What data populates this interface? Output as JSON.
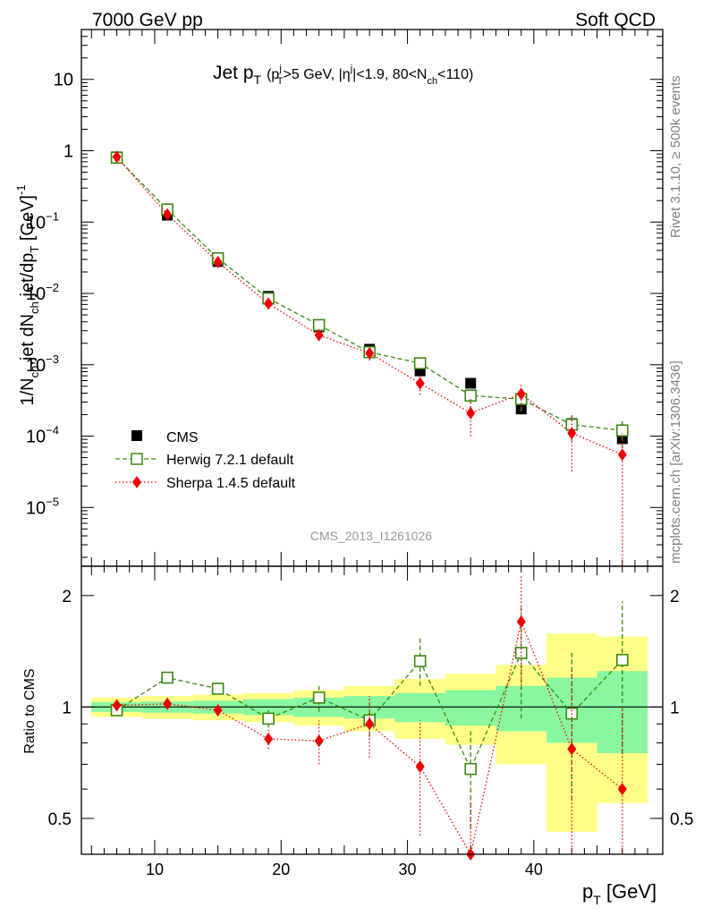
{
  "header": {
    "energy_label": "7000 GeV pp",
    "process_label": "Soft QCD"
  },
  "side_labels": {
    "rivet": "Rivet 3.1.10, ≥ 500k events",
    "source": "mcplots.cern.ch [arXiv:1306.3436]"
  },
  "watermark": "CMS_2013_I1261026",
  "colors": {
    "cms": "#000000",
    "herwig": "#3a8a12",
    "sherpa": "#ee0000",
    "band_yellow": "#ffff88",
    "band_green": "#88f7a0"
  },
  "chart_data": [
    {
      "type": "scatter",
      "panel": "main",
      "title": "Jet p_T (p_T^j>5 GeV, |η^j|<1.9, 80<N_ch<110)",
      "title_parts": {
        "main": "Jet p",
        "main_sub": "T",
        "cond_open": "(p",
        "cond_sup": "j",
        "cond_sub": "T",
        "cond_a": ">5 GeV, |η",
        "cond_sup2": "j",
        "cond_b": "|<1.9, 80<N",
        "cond_sub2": "ch",
        "cond_c": "<110)"
      },
      "ylabel": "1/N_ch,jet dN_ch,jet/dp_T [GeV]^-1",
      "ylabel_parts": {
        "a": "1/N",
        "a_sub": "ch",
        "b": ",jet dN",
        "b_sub": "ch",
        "c": ",jet/dp",
        "c_sub": "T",
        "d": " [GeV]",
        "d_sup": "-1"
      },
      "yscale": "log",
      "ylim": [
        1.5e-06,
        50
      ],
      "xlim": [
        4.2,
        50.2
      ],
      "y_ticks": [
        {
          "value": 1e-05,
          "base": "10",
          "exp": "−5"
        },
        {
          "value": 0.0001,
          "base": "10",
          "exp": "−4"
        },
        {
          "value": 0.001,
          "base": "10",
          "exp": "−3"
        },
        {
          "value": 0.01,
          "base": "10",
          "exp": "−2"
        },
        {
          "value": 0.1,
          "base": "10",
          "exp": "−1"
        },
        {
          "value": 1,
          "base": "1",
          "exp": ""
        },
        {
          "value": 10,
          "base": "10",
          "exp": ""
        }
      ],
      "legend": {
        "position": "bottom-left",
        "entries": [
          "CMS",
          "Herwig 7.2.1 default",
          "Sherpa 1.4.5 default"
        ]
      },
      "x": [
        7,
        11,
        15,
        19,
        23,
        27,
        31,
        35,
        39,
        43,
        47
      ],
      "series": [
        {
          "name": "CMS",
          "values": [
            0.82,
            0.125,
            0.028,
            0.0091,
            0.0034,
            0.00165,
            0.00082,
            0.00055,
            0.00024,
            0.00015,
            9.2e-05
          ]
        },
        {
          "name": "Herwig 7.2.1 default",
          "values": [
            0.8,
            0.15,
            0.031,
            0.0085,
            0.0036,
            0.0015,
            0.00105,
            0.00037,
            0.00033,
            0.000145,
            0.00012
          ],
          "err_low": [
            0.77,
            0.145,
            0.0298,
            0.0081,
            0.0033,
            0.00135,
            0.00095,
            0.00029,
            0.00022,
            8.5e-05,
            7e-05
          ],
          "err_high": [
            0.83,
            0.155,
            0.0322,
            0.0089,
            0.0039,
            0.00165,
            0.00117,
            0.00048,
            0.00045,
            0.00021,
            0.000175
          ]
        },
        {
          "name": "Sherpa 1.4.5 default",
          "values": [
            0.82,
            0.128,
            0.0275,
            0.0072,
            0.0026,
            0.00145,
            0.00055,
            0.00021,
            0.00039,
            0.00011,
            5.5e-05
          ],
          "err_low": [
            0.8,
            0.125,
            0.0268,
            0.0068,
            0.0022,
            0.00115,
            0.00038,
            0.0001,
            0.00025,
            3.2e-05,
            1.5e-06
          ],
          "err_high": [
            0.84,
            0.131,
            0.0282,
            0.0076,
            0.003,
            0.00175,
            0.00072,
            0.00033,
            0.00053,
            0.00019,
            0.00011
          ]
        }
      ]
    },
    {
      "type": "scatter",
      "panel": "ratio",
      "ylabel": "Ratio to CMS",
      "xlabel": "p_T [GeV]",
      "xlabel_parts": {
        "a": "p",
        "a_sub": "T",
        "b": " [GeV]"
      },
      "ylim": [
        0.4,
        2.4
      ],
      "xlim": [
        4.2,
        50.2
      ],
      "x_ticks": [
        10,
        20,
        30,
        40
      ],
      "y_ticks": [
        0.5,
        1,
        2
      ],
      "reference_line": 1,
      "bands": {
        "edges": [
          5,
          9,
          13,
          17,
          21,
          25,
          29,
          33,
          37,
          41,
          45,
          49
        ],
        "yellow_low": [
          0.94,
          0.93,
          0.92,
          0.91,
          0.89,
          0.86,
          0.82,
          0.79,
          0.7,
          0.46,
          0.55
        ],
        "yellow_high": [
          1.06,
          1.07,
          1.08,
          1.09,
          1.11,
          1.14,
          1.19,
          1.23,
          1.3,
          1.58,
          1.55
        ],
        "green_low": [
          0.97,
          0.965,
          0.96,
          0.95,
          0.94,
          0.93,
          0.91,
          0.89,
          0.86,
          0.8,
          0.75
        ],
        "green_high": [
          1.03,
          1.035,
          1.04,
          1.05,
          1.06,
          1.07,
          1.09,
          1.11,
          1.14,
          1.2,
          1.25
        ]
      },
      "x": [
        7,
        11,
        15,
        19,
        23,
        27,
        31,
        35,
        39,
        43,
        47
      ],
      "series": [
        {
          "name": "Herwig 7.2.1 default",
          "values": [
            0.98,
            1.2,
            1.12,
            0.93,
            1.06,
            0.92,
            1.33,
            0.68,
            1.4,
            0.96,
            1.34
          ],
          "err_low": [
            0.96,
            1.17,
            1.09,
            0.88,
            0.97,
            0.83,
            1.14,
            0.47,
            0.93,
            0.56,
            0.75
          ],
          "err_high": [
            1.0,
            1.23,
            1.15,
            0.98,
            1.16,
            1.02,
            1.53,
            0.86,
            1.87,
            1.4,
            1.93
          ]
        },
        {
          "name": "Sherpa 1.4.5 default",
          "values": [
            1.01,
            1.02,
            0.98,
            0.82,
            0.81,
            0.9,
            0.69,
            0.38,
            1.7,
            0.77,
            0.6
          ],
          "err_low": [
            0.99,
            1.0,
            0.95,
            0.77,
            0.7,
            0.73,
            0.45,
            0.2,
            1.12,
            0.28,
            0.2
          ],
          "err_high": [
            1.03,
            1.04,
            1.01,
            0.87,
            0.92,
            1.07,
            0.92,
            0.56,
            2.28,
            1.26,
            1.0
          ]
        }
      ]
    }
  ]
}
